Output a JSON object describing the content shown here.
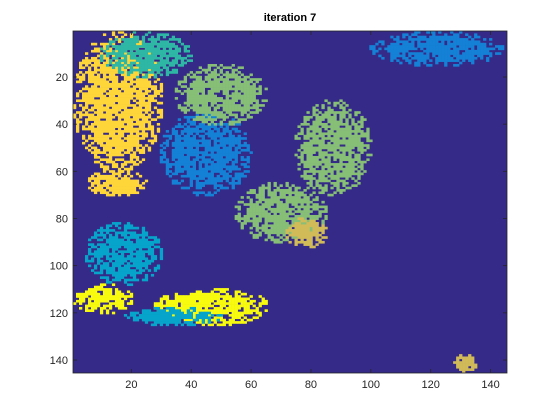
{
  "chart_data": {
    "type": "heatmap",
    "title": "iteration 7",
    "xlabel": "",
    "ylabel": "",
    "xlim": [
      0.5,
      145.5
    ],
    "ylim": [
      145.5,
      0.5
    ],
    "x_ticks": [
      "20",
      "40",
      "60",
      "80",
      "100",
      "120",
      "140"
    ],
    "x_tick_values": [
      20,
      40,
      60,
      80,
      100,
      120,
      140
    ],
    "y_ticks": [
      "20",
      "40",
      "60",
      "80",
      "100",
      "120",
      "140"
    ],
    "y_tick_values": [
      20,
      40,
      60,
      80,
      100,
      120,
      140
    ],
    "grid": false,
    "legend": "none",
    "colormap": "parula",
    "background_color": "#352a87",
    "class_colors": {
      "c1": "#352a87",
      "c2": "#0f5cdd",
      "c3": "#1481d6",
      "c4": "#06a4ca",
      "c5": "#2eb7a4",
      "c6": "#87bf77",
      "c7": "#d1bb59",
      "c8": "#fed63a",
      "c9": "#f9fb0e"
    },
    "regions": [
      {
        "cls": "c8",
        "x": [
          1,
          30
        ],
        "y": [
          1,
          60
        ]
      },
      {
        "cls": "c5",
        "x": [
          10,
          40
        ],
        "y": [
          1,
          20
        ]
      },
      {
        "cls": "c3",
        "x": [
          30,
          60
        ],
        "y": [
          35,
          70
        ]
      },
      {
        "cls": "c6",
        "x": [
          35,
          65
        ],
        "y": [
          15,
          40
        ]
      },
      {
        "cls": "c6",
        "x": [
          55,
          85
        ],
        "y": [
          65,
          90
        ]
      },
      {
        "cls": "c6",
        "x": [
          75,
          100
        ],
        "y": [
          30,
          70
        ]
      },
      {
        "cls": "c7",
        "x": [
          72,
          85
        ],
        "y": [
          80,
          92
        ]
      },
      {
        "cls": "c8",
        "x": [
          5,
          25
        ],
        "y": [
          60,
          70
        ]
      },
      {
        "cls": "c9",
        "x": [
          28,
          66
        ],
        "y": [
          110,
          125
        ]
      },
      {
        "cls": "c4",
        "x": [
          18,
          50
        ],
        "y": [
          118,
          125
        ]
      },
      {
        "cls": "c3",
        "x": [
          100,
          145
        ],
        "y": [
          1,
          15
        ]
      },
      {
        "cls": "c9",
        "x": [
          1,
          20
        ],
        "y": [
          108,
          120
        ]
      },
      {
        "cls": "c4",
        "x": [
          5,
          30
        ],
        "y": [
          82,
          108
        ]
      },
      {
        "cls": "c7",
        "x": [
          128,
          135
        ],
        "y": [
          138,
          145
        ]
      }
    ]
  }
}
